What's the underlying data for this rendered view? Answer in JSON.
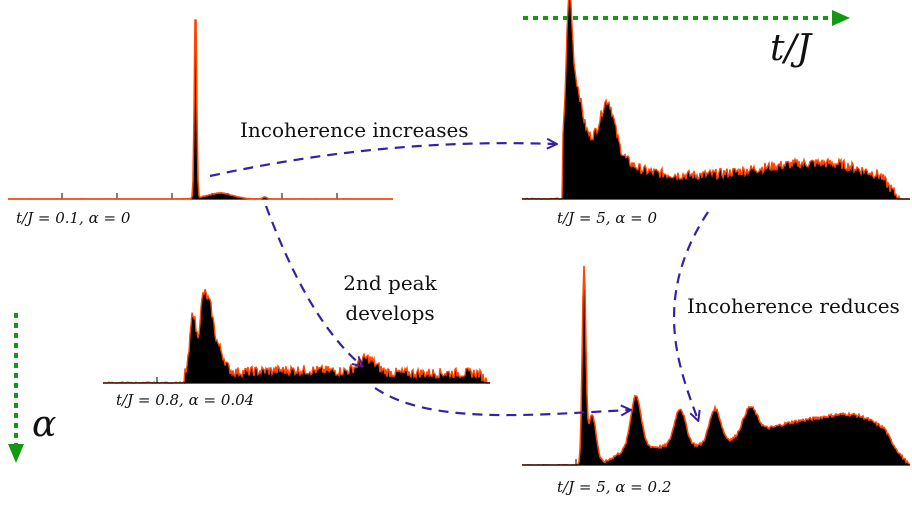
{
  "panels": [
    {
      "id": "p1",
      "caption": "t/J = 0.1, α = 0"
    },
    {
      "id": "p2",
      "caption": "t/J = 5, α = 0"
    },
    {
      "id": "p3",
      "caption": "t/J = 0.8, α = 0.04"
    },
    {
      "id": "p4",
      "caption": "t/J = 5, α = 0.2"
    }
  ],
  "annotations": {
    "incoherence_increases": "Incoherence increases",
    "second_peak_line1": "2nd peak",
    "second_peak_line2": "develops",
    "incoherence_reduces": "Incoherence reduces"
  },
  "axes": {
    "time_label": "t/J",
    "alpha_label": "α"
  },
  "colors": {
    "fill": "#000000",
    "outline": "#ff4500",
    "dashed_arrow": "#3a20a0",
    "green_arrow": "#119911"
  }
}
